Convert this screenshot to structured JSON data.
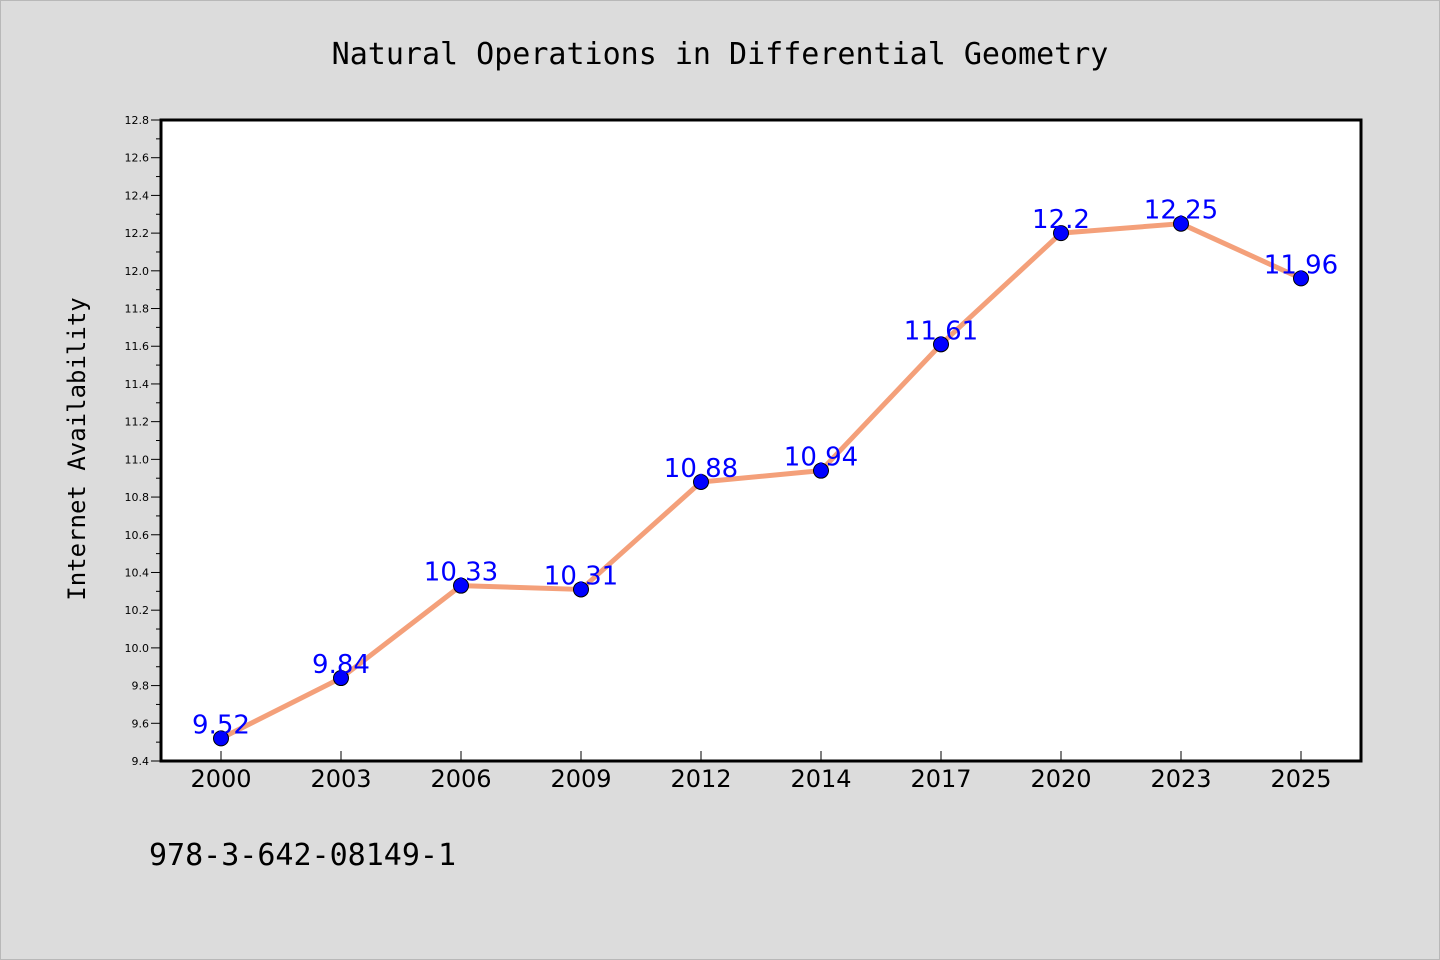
{
  "chart_data": {
    "type": "line",
    "title": "Natural Operations in Differential Geometry",
    "xlabel": "",
    "ylabel": "Internet Availability",
    "categories": [
      "2000",
      "2003",
      "2006",
      "2009",
      "2012",
      "2014",
      "2017",
      "2020",
      "2023",
      "2025"
    ],
    "values": [
      9.52,
      9.84,
      10.33,
      10.31,
      10.88,
      10.94,
      11.61,
      12.2,
      12.25,
      11.96
    ],
    "data_labels": [
      "9.52",
      "9.84",
      "10.33",
      "10.31",
      "10.88",
      "10.94",
      "11.61",
      "12.2",
      "12.25",
      "11.96"
    ],
    "ylim": [
      9.4,
      12.8
    ],
    "yticks": [
      "9.4",
      "9.6",
      "9.8",
      "10.0",
      "10.2",
      "10.4",
      "10.6",
      "10.8",
      "11.0",
      "11.2",
      "11.4",
      "11.6",
      "11.8",
      "12.0",
      "12.2",
      "12.4",
      "12.6",
      "12.8"
    ],
    "grid": false,
    "legend": "none",
    "line_color": "#f4a07a",
    "marker_color": "#0000ff",
    "label_color": "#0000ff"
  },
  "footer_text": "978-3-642-08149-1"
}
